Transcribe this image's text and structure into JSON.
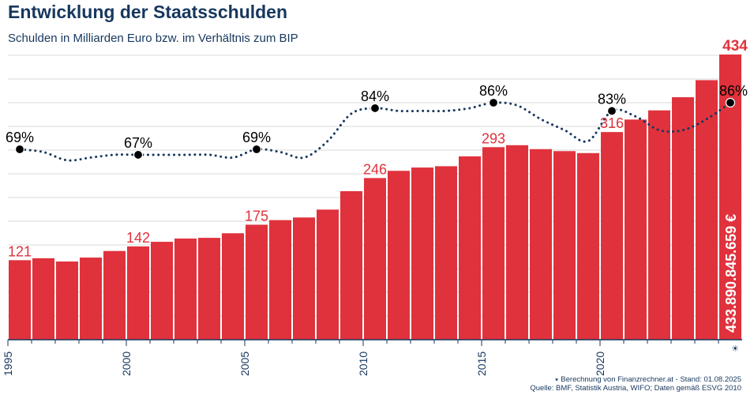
{
  "title": "Entwicklung der Staatsschulden",
  "subtitle": "Schulden in Milliarden Euro bzw. im Verhältnis zum BIP",
  "footnote": {
    "line1": "⭑ Berechnung von Finanzrechner.at - Stand: 01.08.2025",
    "line2": "Quelle: BMF, Statistik Austria, WIFO; Daten gemäß ESVG 2010"
  },
  "colors": {
    "bar": "#e0323c",
    "line": "#17375e",
    "grid": "#d8d8d8",
    "label_debt": "#e0323c",
    "text": "#17375e"
  },
  "chart_data": {
    "type": "bar",
    "x": [
      1995,
      1996,
      1997,
      1998,
      1999,
      2000,
      2001,
      2002,
      2003,
      2004,
      2005,
      2006,
      2007,
      2008,
      2009,
      2010,
      2011,
      2012,
      2013,
      2014,
      2015,
      2016,
      2017,
      2018,
      2019,
      2020,
      2021,
      2022,
      2023,
      2024,
      2025
    ],
    "x_tick_labels": [
      "1995",
      "2000",
      "2005",
      "2010",
      "2015",
      "2020"
    ],
    "last_x_marker": "☀",
    "series": [
      {
        "values": [
          121,
          124,
          119,
          125,
          135,
          142,
          149,
          154,
          155,
          162,
          175,
          182,
          186,
          198,
          226,
          246,
          257,
          262,
          264,
          279,
          293,
          296,
          290,
          287,
          284,
          316,
          335,
          349,
          369,
          395,
          434
        ],
        "labels": {
          "1995": "121",
          "2000": "142",
          "2005": "175",
          "2010": "246",
          "2015": "293",
          "2020": "316",
          "2025": "434"
        }
      },
      {
        "values": [
          69,
          68,
          65,
          66,
          67,
          67,
          67,
          67,
          67,
          66,
          69,
          68,
          66,
          72,
          82,
          84,
          83,
          83,
          83,
          84,
          86,
          85,
          80,
          76,
          72,
          83,
          81,
          76,
          76,
          80,
          86
        ],
        "labels": {
          "1995": "69%",
          "2000": "67%",
          "2005": "69%",
          "2010": "84%",
          "2015": "86%",
          "2020": "83%",
          "2025": "86%"
        }
      }
    ],
    "current_value_label": "433.890.845.659 €",
    "y_debt_range": [
      0,
      440
    ],
    "y_ratio_range": [
      0,
      160
    ],
    "grid": true
  }
}
